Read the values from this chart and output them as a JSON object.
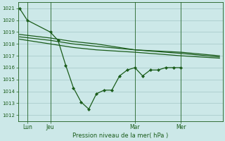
{
  "bg_color": "#cce8e8",
  "grid_color": "#aacccc",
  "line_color": "#1a5c1a",
  "xlabel": "Pression niveau de la mer( hPa )",
  "ylim": [
    1011.5,
    1021.5
  ],
  "yticks": [
    1012,
    1013,
    1014,
    1015,
    1016,
    1017,
    1018,
    1019,
    1020,
    1021
  ],
  "xtick_labels": [
    "Lun",
    "Jeu",
    "Mar",
    "Mer"
  ],
  "xtick_positions": [
    0.5,
    2.0,
    7.5,
    10.5
  ],
  "vlines": [
    0.5,
    2.0,
    7.5,
    10.5
  ],
  "series_wiggly": {
    "x": [
      0.0,
      0.5,
      2.0,
      2.5,
      3.0,
      3.5,
      4.0,
      4.5,
      5.0,
      5.5,
      6.0,
      6.5,
      7.0,
      7.5,
      8.0,
      8.5,
      9.0,
      9.5,
      10.0,
      10.5
    ],
    "y": [
      1021.0,
      1020.0,
      1019.0,
      1018.3,
      1016.2,
      1014.3,
      1013.1,
      1012.5,
      1013.8,
      1014.1,
      1014.1,
      1015.3,
      1015.8,
      1016.0,
      1015.3,
      1015.8,
      1015.8,
      1016.0,
      1016.0,
      1016.0
    ]
  },
  "series_smooth1": {
    "x": [
      0.0,
      2.0,
      3.5,
      5.0,
      7.5,
      10.5,
      13.0
    ],
    "y": [
      1018.8,
      1018.5,
      1018.2,
      1018.0,
      1017.5,
      1017.3,
      1017.0
    ]
  },
  "series_smooth2": {
    "x": [
      0.0,
      2.0,
      3.5,
      5.0,
      7.5,
      10.5,
      13.0
    ],
    "y": [
      1018.6,
      1018.3,
      1018.0,
      1017.8,
      1017.5,
      1017.2,
      1016.9
    ]
  },
  "series_smooth3": {
    "x": [
      0.0,
      2.0,
      3.5,
      5.0,
      7.5,
      10.5,
      13.0
    ],
    "y": [
      1018.4,
      1018.0,
      1017.7,
      1017.5,
      1017.3,
      1017.0,
      1016.8
    ]
  },
  "xlim": [
    -0.1,
    13.2
  ],
  "figsize": [
    3.2,
    2.0
  ],
  "dpi": 100
}
